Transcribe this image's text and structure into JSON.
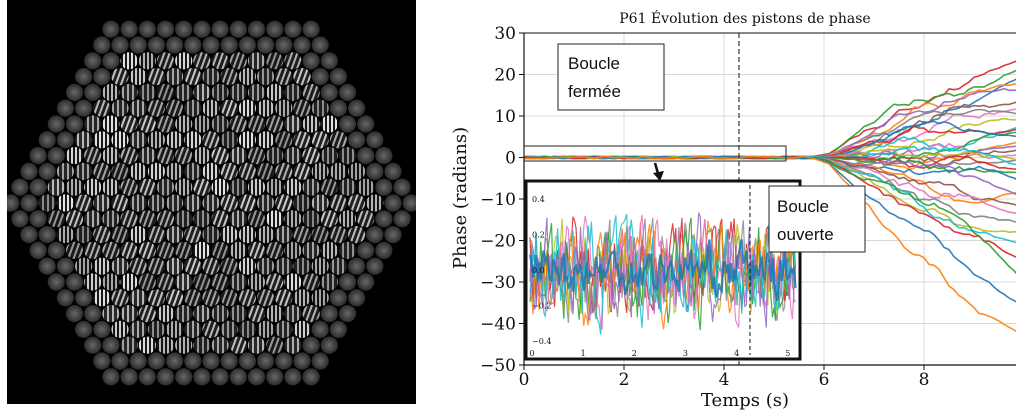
{
  "chart_data": {
    "type": "line",
    "title": "P61 Évolution des pistons de phase",
    "xlabel": "Temps (s)",
    "ylabel": "Phase (radians)",
    "xlim": [
      0,
      10
    ],
    "ylim": [
      -50,
      30
    ],
    "x_ticks": [
      "0",
      "2",
      "4",
      "6",
      "8"
    ],
    "y_ticks": [
      "30",
      "20",
      "10",
      "0",
      "−10",
      "−20",
      "−30",
      "−40",
      "−50"
    ],
    "grid": true,
    "vline_x": 4.3,
    "loop_open_time": 6,
    "series_end_values": [
      24,
      22,
      20,
      18,
      16,
      14,
      12,
      10,
      9,
      8,
      7,
      6,
      5,
      4,
      3,
      2,
      1,
      0,
      -1,
      -2,
      -3,
      -4,
      -6,
      -8,
      -10,
      -12,
      -14,
      -16,
      -18,
      -21,
      -25,
      -30,
      -36,
      -43
    ],
    "series_colors": [
      "#d62728",
      "#2ca02c",
      "#1f77b4",
      "#ff7f0e",
      "#9467bd",
      "#8c564b",
      "#e377c2",
      "#7f7f7f",
      "#bcbd22",
      "#17becf"
    ],
    "annotations": {
      "closed_loop_line1": "Boucle",
      "closed_loop_line2": "fermée",
      "open_loop_line1": "Boucle",
      "open_loop_line2": "ouverte"
    },
    "inset": {
      "x_ticks": [
        "0",
        "1",
        "2",
        "3",
        "4",
        "5"
      ],
      "y_ticks": [
        "0.4",
        "0.2",
        "0.0",
        "−0.2",
        "−0.4"
      ],
      "xlim": [
        0,
        5.2
      ],
      "ylim": [
        -0.48,
        0.48
      ],
      "vline_x": 4.3
    }
  },
  "image": {
    "description_icon": "segmented-mirror-interferogram"
  }
}
